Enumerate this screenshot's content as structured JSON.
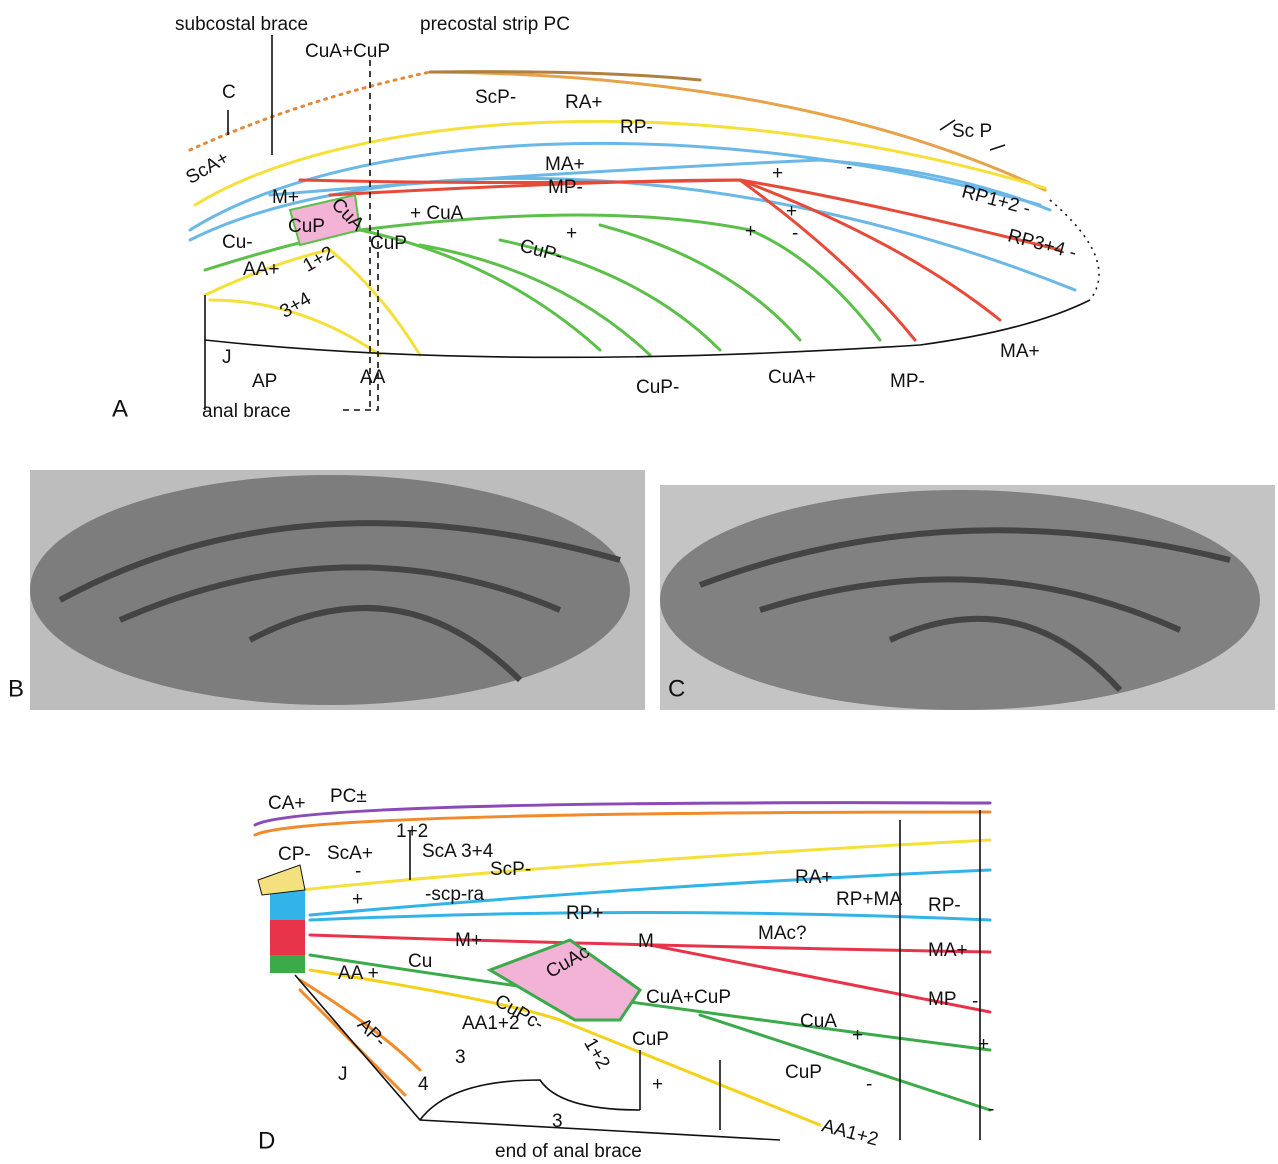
{
  "panels": {
    "A": {
      "letter": "A",
      "labels": [
        "subcostal brace",
        "precostal strip PC",
        "CuA+CuP",
        "C",
        "ScA+",
        "ScP-",
        "RA+",
        "RP-",
        "Sc P",
        "MA+",
        "MP-",
        "+",
        "-",
        "RP1+2 -",
        "+ CuA",
        "CuA",
        "M+",
        "Cu-",
        "CuP",
        "CuP",
        "CuP-",
        "+",
        "+",
        "-",
        "+",
        "RP3+4 -",
        "AA+",
        "1+2",
        "3+4",
        "J",
        "AP",
        "AA",
        "CuP-",
        "CuA+",
        "MP-",
        "MA+",
        "anal brace"
      ]
    },
    "B": {
      "letter": "B"
    },
    "C": {
      "letter": "C"
    },
    "D": {
      "letter": "D",
      "labels": [
        "CA+",
        "PC±",
        "1+2",
        "ScA 3+4",
        "CP-",
        "ScA+",
        "ScP-",
        "-scp-ra",
        "RA+",
        "RP+MA",
        "RP-",
        "RP+",
        "+",
        "-",
        "M+",
        "M",
        "MAc?",
        "MA+",
        "Cu",
        "AA +",
        "CuAc",
        "CuA+CuP",
        "CuPc-",
        "AA1+2",
        "MP",
        "CuA",
        "+",
        "AP-",
        "CuP",
        "1+2",
        "3",
        "3",
        "4",
        "J",
        "CuP",
        "AA1+2",
        "end of anal brace",
        "+",
        "-",
        "-",
        "+",
        "-"
      ]
    }
  }
}
